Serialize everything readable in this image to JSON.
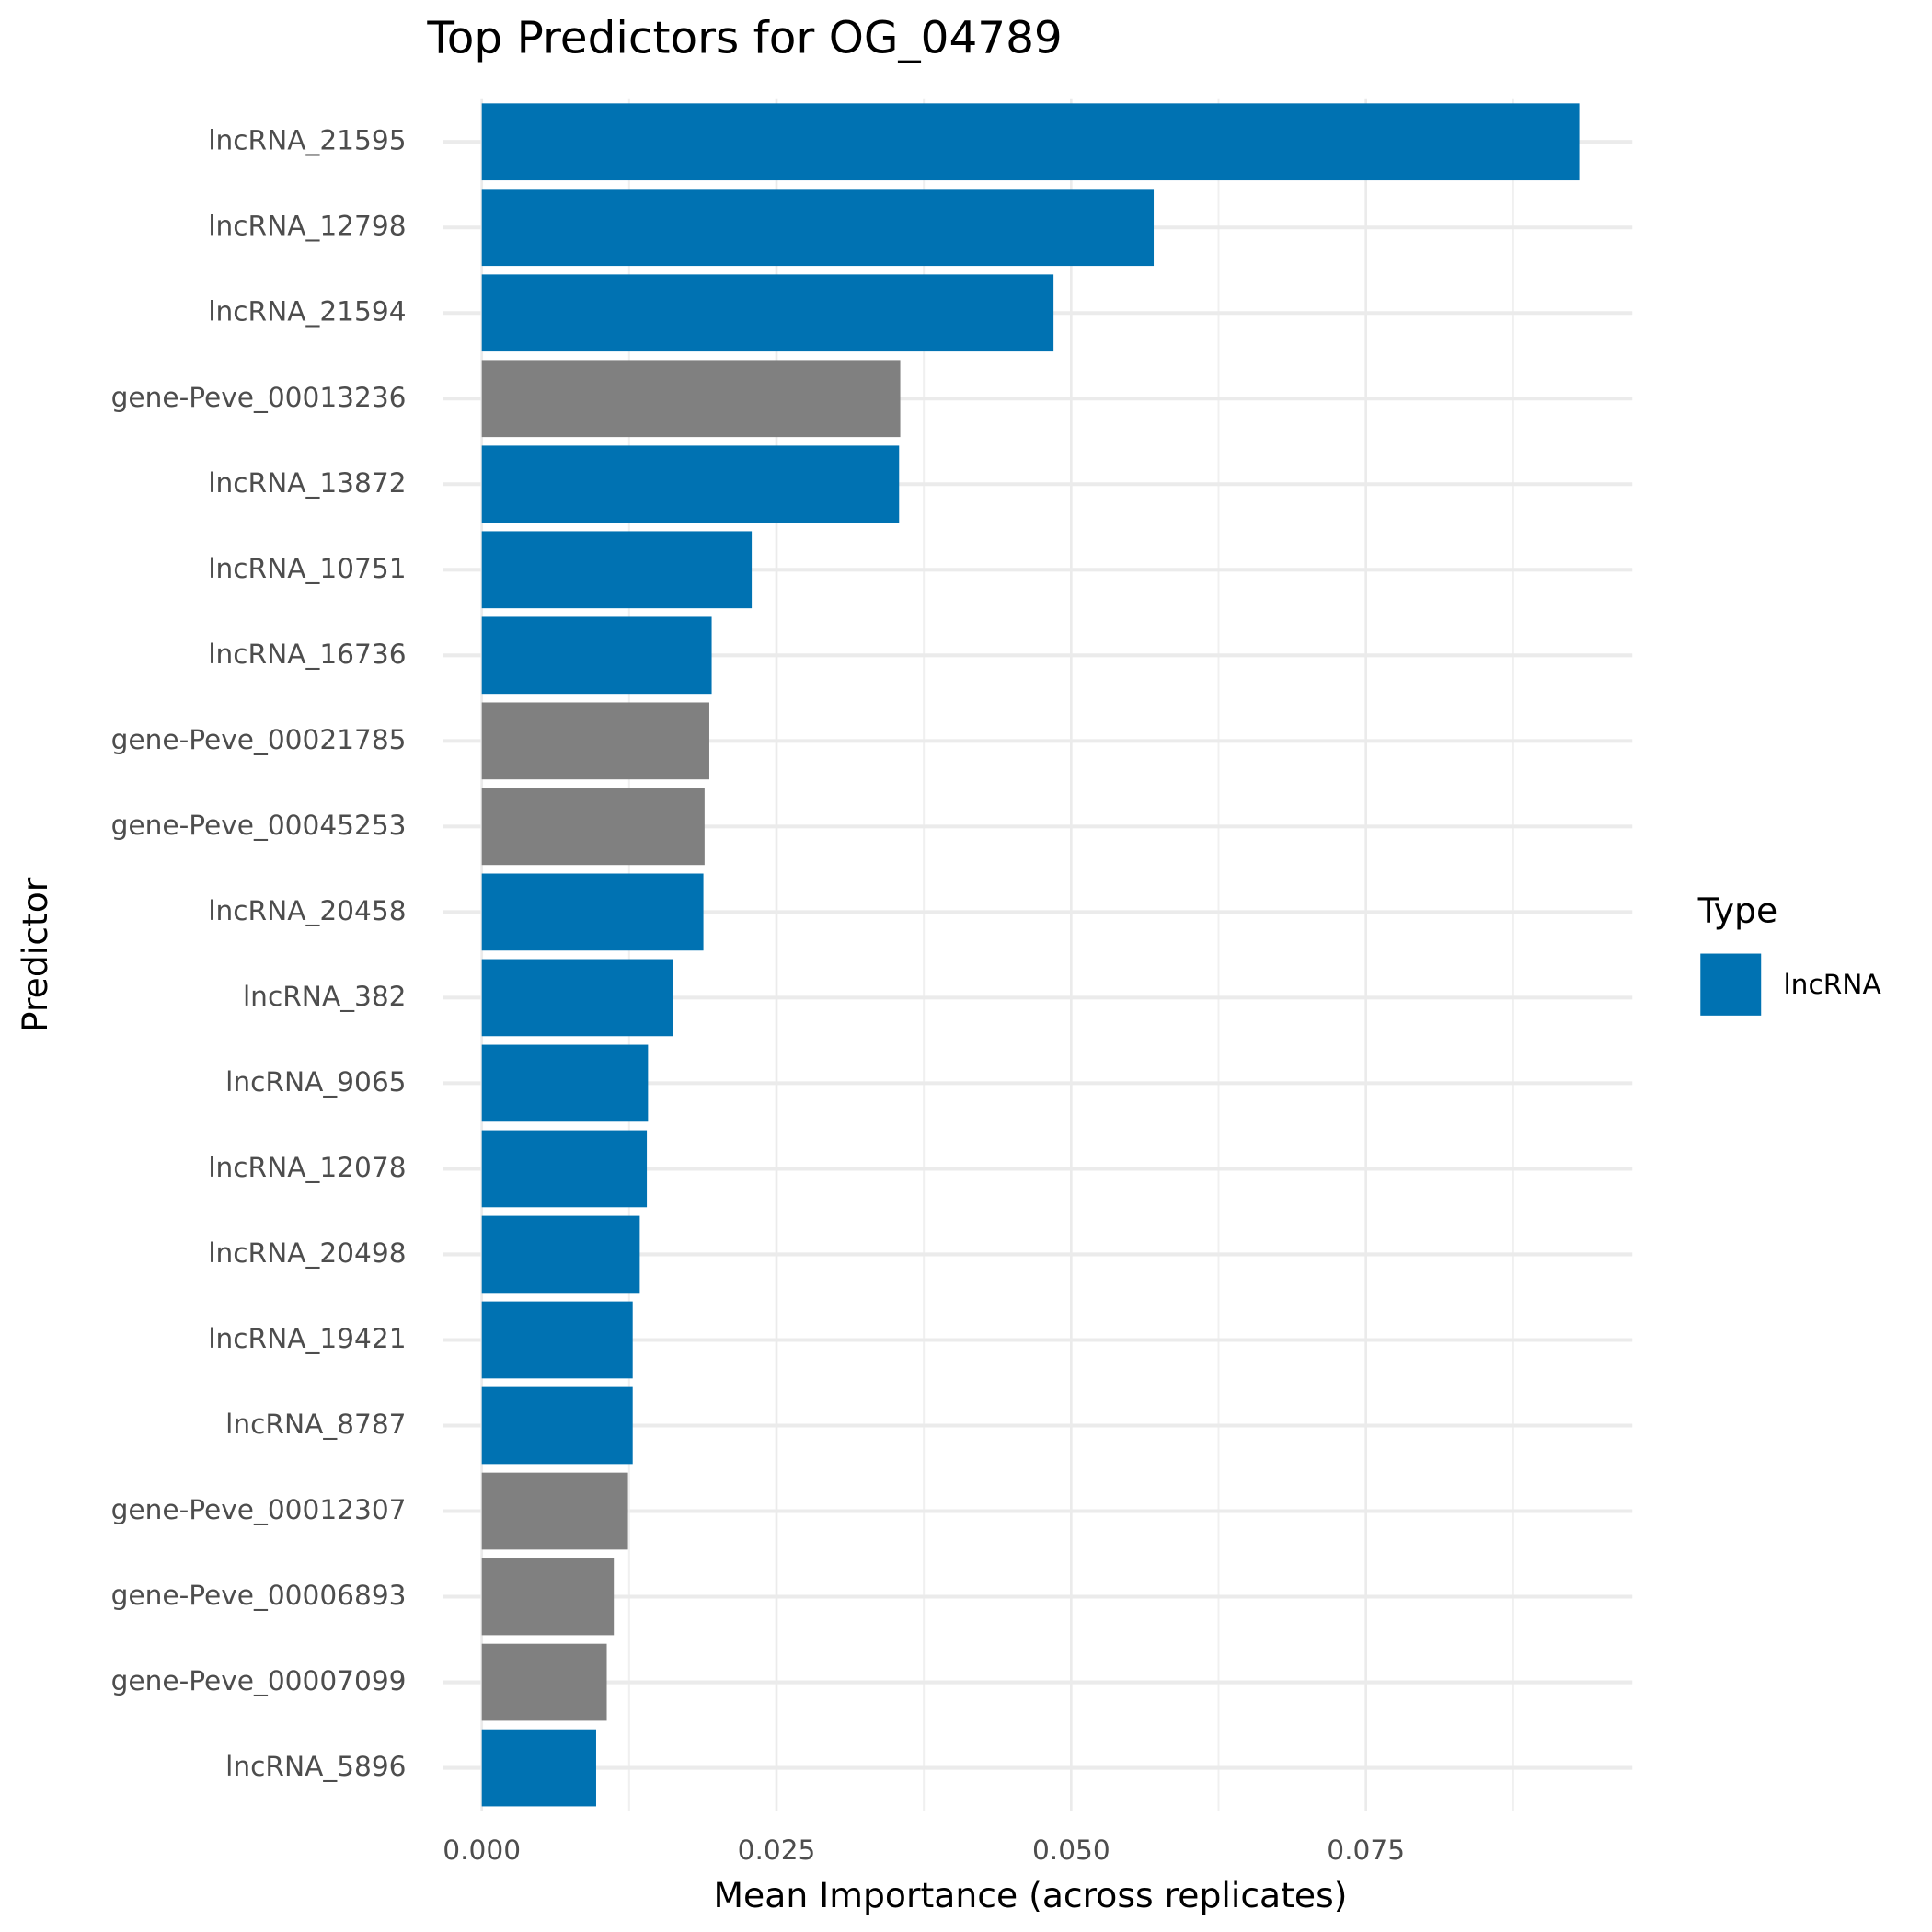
{
  "chart_data": {
    "type": "barh",
    "title": "Top Predictors for OG_04789",
    "xlabel": "Mean Importance (across replicates)",
    "ylabel": "Predictor",
    "categories": [
      "lncRNA_21595",
      "lncRNA_12798",
      "lncRNA_21594",
      "gene-Peve_00013236",
      "lncRNA_13872",
      "lncRNA_10751",
      "lncRNA_16736",
      "gene-Peve_00021785",
      "gene-Peve_00045253",
      "lncRNA_20458",
      "lncRNA_382",
      "lncRNA_9065",
      "lncRNA_12078",
      "lncRNA_20498",
      "lncRNA_19421",
      "lncRNA_8787",
      "gene-Peve_00012307",
      "gene-Peve_00006893",
      "gene-Peve_00007099",
      "lncRNA_5896"
    ],
    "values": [
      0.0931,
      0.057,
      0.0485,
      0.0355,
      0.0354,
      0.0229,
      0.0195,
      0.0193,
      0.0189,
      0.0188,
      0.0162,
      0.0141,
      0.014,
      0.0134,
      0.0128,
      0.0128,
      0.0124,
      0.0112,
      0.0106,
      0.0097
    ],
    "colors": [
      "#0072B2",
      "#0072B2",
      "#0072B2",
      "#808080",
      "#0072B2",
      "#0072B2",
      "#0072B2",
      "#808080",
      "#808080",
      "#0072B2",
      "#0072B2",
      "#0072B2",
      "#0072B2",
      "#0072B2",
      "#0072B2",
      "#0072B2",
      "#808080",
      "#808080",
      "#808080",
      "#0072B2"
    ],
    "xlim": [
      -0.00326,
      0.0976
    ],
    "xticks": [
      {
        "value": 0,
        "label": "0.000"
      },
      {
        "value": 0.025,
        "label": "0.025"
      },
      {
        "value": 0.05,
        "label": "0.050"
      },
      {
        "value": 0.075,
        "label": "0.075"
      }
    ],
    "grid": true,
    "legend": {
      "title": "Type",
      "position": "right",
      "items": [
        {
          "name": "lncRNA",
          "color": "#0072B2"
        }
      ]
    }
  }
}
